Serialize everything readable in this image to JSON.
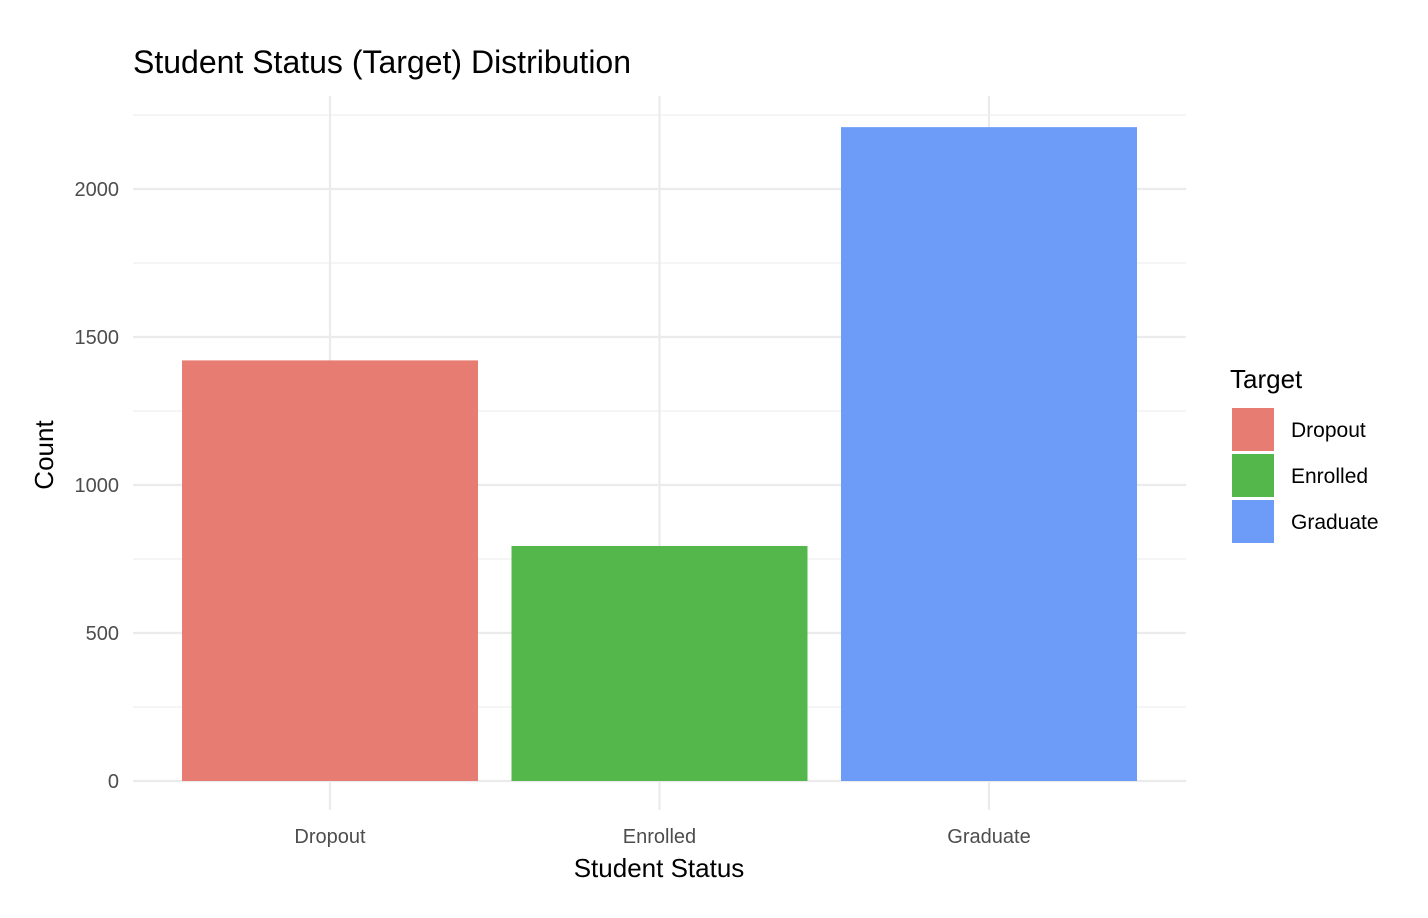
{
  "chart_data": {
    "type": "bar",
    "title": "Student Status (Target) Distribution",
    "xlabel": "Student Status",
    "ylabel": "Count",
    "categories": [
      "Dropout",
      "Enrolled",
      "Graduate"
    ],
    "values": [
      1421,
      794,
      2209
    ],
    "colors": [
      "#E77D72",
      "#53B74C",
      "#6D9CF8"
    ],
    "ylim": [
      0,
      2300
    ],
    "yticks": [
      0,
      500,
      1000,
      1500,
      2000
    ],
    "yticks_minor": [
      250,
      750,
      1250,
      1750,
      2250
    ],
    "grid": true,
    "legend": {
      "title": "Target",
      "position": "right",
      "entries": [
        "Dropout",
        "Enrolled",
        "Graduate"
      ]
    }
  }
}
